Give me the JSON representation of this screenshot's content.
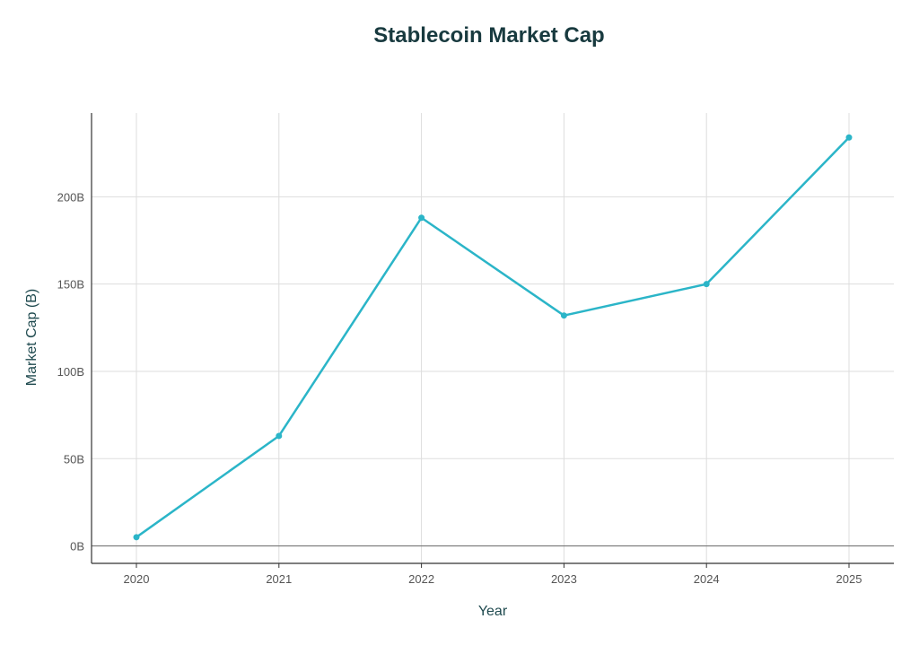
{
  "chart_data": {
    "type": "line",
    "title": "Stablecoin Market Cap",
    "xlabel": "Year",
    "ylabel": "Market Cap (B)",
    "categories": [
      "2020",
      "2021",
      "2022",
      "2023",
      "2024",
      "2025"
    ],
    "series": [
      {
        "values": [
          5,
          63,
          188,
          132,
          150,
          234
        ]
      }
    ],
    "yticks": [
      0,
      50,
      100,
      150,
      200
    ],
    "ytick_labels": [
      "0B",
      "50B",
      "100B",
      "150B",
      "200B"
    ],
    "ylim": [
      -10,
      248
    ],
    "grid": true,
    "colors": {
      "line": "#2bb5c8",
      "title": "#183a3f",
      "axis_label": "#1f4a4f",
      "tick_label": "#555555",
      "grid": "#dddddd",
      "axis": "#333333"
    }
  }
}
